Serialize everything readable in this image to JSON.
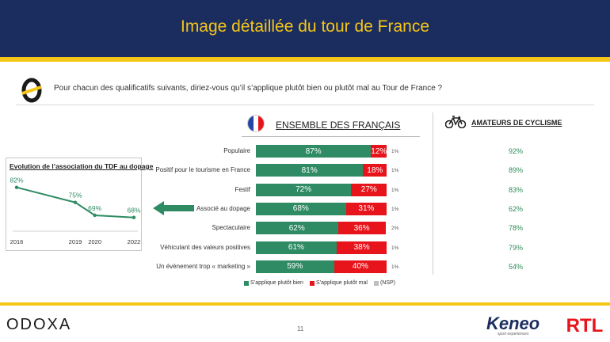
{
  "header": {
    "title": "Image détaillée du tour de France"
  },
  "question": "Pour chacun des qualificatifs suivants, diriez-vous qu’il s’applique plutôt bien ou plutôt mal au Tour de France ?",
  "section_title": "ENSEMBLE DES FRANÇAIS",
  "amateurs_title": "AMATEURS DE CYCLISME",
  "colors": {
    "good": "#2e8b63",
    "bad": "#e8141b",
    "nsp": "#bfbfbf",
    "navy": "#1b2d5e",
    "yellow": "#f5c518"
  },
  "icons": {
    "brand": "odoxa-circle-icon",
    "flag": "french-flag-icon",
    "bike": "bicycle-icon",
    "arrow": "left-arrow-icon"
  },
  "chart_data": [
    {
      "type": "bar",
      "stacked": true,
      "orientation": "horizontal",
      "categories": [
        "Populaire",
        "Positif pour le tourisme en France",
        "Festif",
        "Associé au dopage",
        "Spectaculaire",
        "Véhiculant des valeurs positives",
        "Un évènement trop « marketing »"
      ],
      "series": [
        {
          "name": "S’applique plutôt bien",
          "values": [
            87,
            81,
            72,
            68,
            62,
            61,
            59
          ],
          "labels": [
            "87%",
            "81%",
            "72%",
            "68%",
            "62%",
            "61%",
            "59%"
          ]
        },
        {
          "name": "S’applique plutôt mal",
          "values": [
            12,
            18,
            27,
            31,
            36,
            38,
            40
          ],
          "labels": [
            "12%",
            "18%",
            "27%",
            "31%",
            "36%",
            "38%",
            "40%"
          ]
        },
        {
          "name": "(NSP)",
          "values": [
            1,
            1,
            1,
            1,
            2,
            1,
            1
          ],
          "labels": [
            "1%",
            "1%",
            "1%",
            "1%",
            "2%",
            "1%",
            "1%"
          ]
        }
      ],
      "amateurs": {
        "values": [
          92,
          89,
          83,
          62,
          78,
          79,
          54
        ],
        "labels": [
          "92%",
          "89%",
          "83%",
          "62%",
          "78%",
          "79%",
          "54%"
        ]
      },
      "legend": "bottom",
      "xlim": [
        0,
        100
      ]
    },
    {
      "type": "line",
      "title": "Evolution de l’association du TDF au dopage",
      "x": [
        2016,
        2019,
        2020,
        2022
      ],
      "x_labels": [
        "2016",
        "2019",
        "2020",
        "2022"
      ],
      "y": [
        82,
        75,
        69,
        68
      ],
      "y_labels": [
        "82%",
        "75%",
        "69%",
        "68%"
      ],
      "ylim": [
        55,
        90
      ]
    }
  ],
  "legend_items": [
    "S’applique plutôt bien",
    "S’applique plutôt mal",
    "(NSP)"
  ],
  "footer": {
    "left_brand": "ODOXA",
    "page_number": "11",
    "keneo": "Keneo",
    "keneo_sub": "sport experiences",
    "rtl": "RTL"
  }
}
